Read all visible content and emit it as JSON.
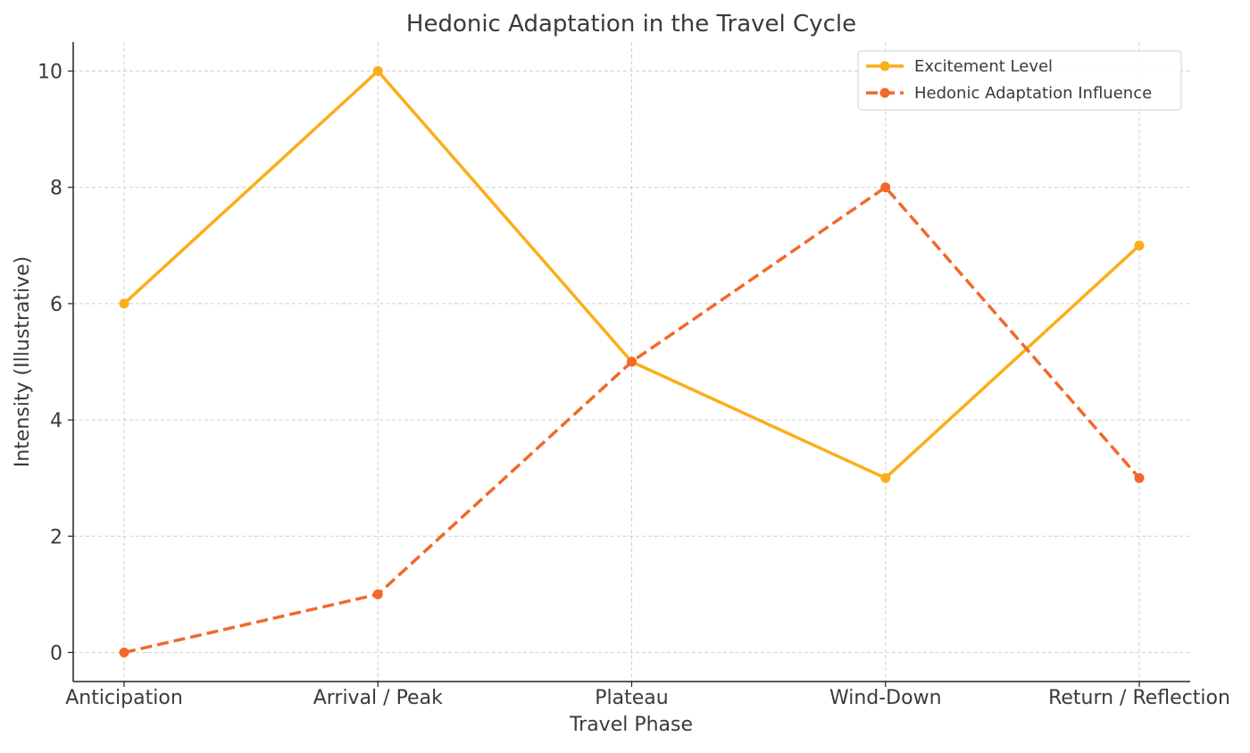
{
  "chart_data": {
    "type": "line",
    "title": "Hedonic Adaptation in the Travel Cycle",
    "xlabel": "Travel Phase",
    "ylabel": "Intensity (Illustrative)",
    "categories": [
      "Anticipation",
      "Arrival / Peak",
      "Plateau",
      "Wind-Down",
      "Return / Reflection"
    ],
    "ylim": [
      -0.5,
      10.5
    ],
    "yticks": [
      0,
      2,
      4,
      6,
      8,
      10
    ],
    "grid": true,
    "legend_position": "top-right",
    "series": [
      {
        "name": "Excitement Level",
        "values": [
          6,
          10,
          5,
          3,
          7
        ],
        "color": "#FBAE17",
        "line_style": "solid",
        "marker": "circle"
      },
      {
        "name": "Hedonic Adaptation Influence",
        "values": [
          0,
          1,
          5,
          8,
          3
        ],
        "color": "#F1692A",
        "line_style": "dashed",
        "marker": "circle"
      }
    ]
  }
}
